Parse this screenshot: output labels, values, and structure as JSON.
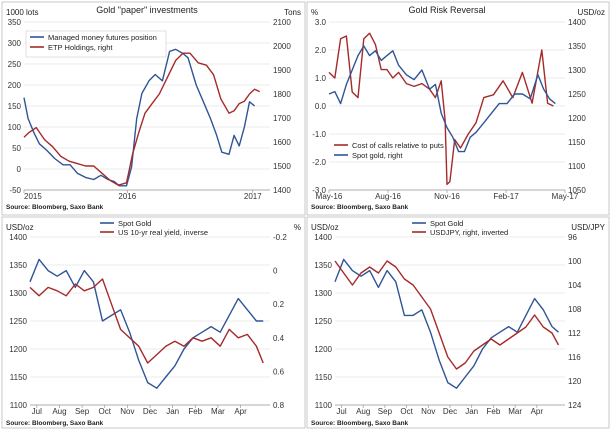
{
  "colors": {
    "blue": "#2f5597",
    "red": "#a52a2a",
    "grid": "#d8d8d8"
  },
  "chart_data": [
    {
      "type": "line",
      "title": "Gold \"paper\" investments",
      "ylabel_left": "1000 lots",
      "ylabel_right": "Tons",
      "source": "Source: Bloomberg, Saxo Bank",
      "x_ticks": [
        "2015",
        "2016",
        "2017"
      ],
      "xlim": [
        2015.0,
        2017.4
      ],
      "ylim_left": [
        -50,
        350
      ],
      "ylim_right": [
        1400,
        2100
      ],
      "yticks_left": [
        -50,
        0,
        50,
        100,
        150,
        200,
        250,
        300,
        350
      ],
      "yticks_right": [
        1400,
        1500,
        1600,
        1700,
        1800,
        1900,
        2000,
        2100
      ],
      "legend": "top-left",
      "series": [
        {
          "name": "Managed money futures position",
          "axis": "left",
          "color": "#2f5597",
          "x": [
            2015.0,
            2015.04,
            2015.1,
            2015.15,
            2015.22,
            2015.3,
            2015.38,
            2015.45,
            2015.52,
            2015.6,
            2015.68,
            2015.75,
            2015.82,
            2015.88,
            2015.93,
            2016.0,
            2016.05,
            2016.1,
            2016.15,
            2016.22,
            2016.28,
            2016.35,
            2016.42,
            2016.48,
            2016.55,
            2016.6,
            2016.68,
            2016.75,
            2016.82,
            2016.88,
            2016.93,
            2017.0,
            2017.05,
            2017.1,
            2017.15,
            2017.2,
            2017.25
          ],
          "values": [
            170,
            120,
            85,
            60,
            45,
            25,
            10,
            10,
            -10,
            -20,
            -25,
            -15,
            -25,
            -30,
            -40,
            -40,
            5,
            120,
            180,
            210,
            225,
            210,
            280,
            285,
            275,
            265,
            200,
            160,
            120,
            80,
            40,
            35,
            80,
            55,
            100,
            160,
            150
          ]
        },
        {
          "name": "ETP Holdings, right",
          "axis": "right",
          "color": "#a52a2a",
          "x": [
            2015.0,
            2015.05,
            2015.12,
            2015.2,
            2015.28,
            2015.36,
            2015.44,
            2015.52,
            2015.6,
            2015.68,
            2015.76,
            2015.84,
            2015.92,
            2016.0,
            2016.06,
            2016.12,
            2016.18,
            2016.25,
            2016.32,
            2016.4,
            2016.48,
            2016.55,
            2016.62,
            2016.7,
            2016.78,
            2016.85,
            2016.92,
            2017.0,
            2017.05,
            2017.1,
            2017.15,
            2017.2,
            2017.25,
            2017.3
          ],
          "values": [
            1620,
            1640,
            1660,
            1610,
            1580,
            1540,
            1520,
            1510,
            1500,
            1500,
            1470,
            1440,
            1420,
            1430,
            1550,
            1640,
            1720,
            1760,
            1800,
            1870,
            1940,
            1970,
            1970,
            1930,
            1920,
            1880,
            1780,
            1720,
            1730,
            1760,
            1770,
            1800,
            1820,
            1810
          ]
        }
      ]
    },
    {
      "type": "line",
      "title": "Gold Risk Reversal",
      "ylabel_left": "%",
      "ylabel_right": "USD/oz",
      "source": "Source: Bloomberg, Saxo Bank",
      "x_ticks": [
        "May-16",
        "Aug-16",
        "Nov-16",
        "Feb-17",
        "May-17"
      ],
      "xlim": [
        0,
        12.2
      ],
      "ylim_left": [
        -3.0,
        3.0
      ],
      "ylim_right": [
        1050,
        1400
      ],
      "yticks_left": [
        -3.0,
        -2.0,
        -1.0,
        0.0,
        1.0,
        2.0,
        3.0
      ],
      "yticks_right": [
        1050,
        1100,
        1150,
        1200,
        1250,
        1300,
        1350,
        1400
      ],
      "legend": "bottom-left",
      "series": [
        {
          "name": "Cost of calls relative to puts",
          "axis": "left",
          "color": "#a52a2a",
          "x": [
            0,
            0.3,
            0.6,
            0.9,
            1.2,
            1.5,
            1.8,
            2.1,
            2.4,
            2.7,
            3.0,
            3.3,
            3.6,
            4.0,
            4.4,
            4.8,
            5.2,
            5.5,
            5.8,
            6.0,
            6.1,
            6.25,
            6.5,
            6.8,
            7.2,
            7.6,
            8.0,
            8.5,
            9.0,
            9.5,
            10.0,
            10.5,
            11.0,
            11.3,
            11.6
          ],
          "values": [
            1.2,
            1.0,
            2.4,
            2.5,
            0.5,
            0.3,
            2.4,
            2.6,
            2.2,
            1.3,
            1.3,
            1.0,
            1.2,
            0.8,
            0.7,
            0.8,
            0.6,
            0.3,
            0.9,
            -0.5,
            -2.8,
            -2.7,
            -1.2,
            -1.5,
            -1.0,
            -0.6,
            0.3,
            0.4,
            0.9,
            0.3,
            1.2,
            0.1,
            2.0,
            0.1,
            0.0
          ]
        },
        {
          "name": "Spot gold, right",
          "axis": "right",
          "color": "#2f5597",
          "x": [
            0,
            0.3,
            0.6,
            0.9,
            1.2,
            1.5,
            1.8,
            2.1,
            2.4,
            2.7,
            3.0,
            3.3,
            3.6,
            4.0,
            4.4,
            4.8,
            5.2,
            5.5,
            5.8,
            6.1,
            6.4,
            6.7,
            7.0,
            7.3,
            7.6,
            8.0,
            8.4,
            8.8,
            9.2,
            9.6,
            10.0,
            10.4,
            10.8,
            11.1,
            11.4,
            11.7
          ],
          "values": [
            1250,
            1255,
            1230,
            1270,
            1300,
            1330,
            1350,
            1330,
            1340,
            1320,
            1330,
            1340,
            1310,
            1290,
            1280,
            1300,
            1260,
            1270,
            1210,
            1180,
            1160,
            1130,
            1130,
            1160,
            1170,
            1190,
            1210,
            1230,
            1230,
            1250,
            1250,
            1240,
            1290,
            1260,
            1240,
            1230
          ]
        }
      ]
    },
    {
      "type": "line",
      "ylabel_left": "USD/oz",
      "ylabel_right": "%",
      "source": "Source: Bloomberg, Saxo Bank",
      "x_ticks": [
        "Jul",
        "Aug",
        "Sep",
        "Oct",
        "Nov",
        "Dec",
        "Jan",
        "Feb",
        "Mar",
        "Apr"
      ],
      "xlim": [
        0,
        10.6
      ],
      "ylim_left": [
        1100,
        1400
      ],
      "ylim_right": [
        0.8,
        -0.2
      ],
      "yticks_left": [
        1100,
        1150,
        1200,
        1250,
        1300,
        1350,
        1400
      ],
      "yticks_right": [
        -0.2,
        0.0,
        0.2,
        0.4,
        0.6,
        0.8
      ],
      "yticks_right_labels": [
        "-0.2",
        "0",
        "0.2",
        "0.4",
        "0.6",
        "0.8"
      ],
      "legend": "top-center",
      "series": [
        {
          "name": "Spot Gold",
          "axis": "left",
          "color": "#2f5597",
          "x": [
            0,
            0.4,
            0.8,
            1.2,
            1.6,
            2.0,
            2.4,
            2.8,
            3.2,
            3.6,
            4.0,
            4.4,
            4.8,
            5.2,
            5.6,
            6.0,
            6.4,
            6.8,
            7.2,
            7.6,
            8.0,
            8.4,
            8.8,
            9.2,
            9.6,
            10.0,
            10.3
          ],
          "values": [
            1320,
            1360,
            1340,
            1330,
            1340,
            1310,
            1340,
            1320,
            1250,
            1260,
            1270,
            1230,
            1180,
            1140,
            1130,
            1150,
            1170,
            1200,
            1220,
            1230,
            1240,
            1230,
            1260,
            1290,
            1270,
            1250,
            1250
          ]
        },
        {
          "name": "US 10-yr real yield, inverse",
          "axis": "right",
          "color": "#a52a2a",
          "x": [
            0,
            0.4,
            0.8,
            1.2,
            1.6,
            2.0,
            2.4,
            2.8,
            3.2,
            3.6,
            4.0,
            4.4,
            4.8,
            5.2,
            5.6,
            6.0,
            6.4,
            6.8,
            7.2,
            7.6,
            8.0,
            8.4,
            8.8,
            9.2,
            9.6,
            10.0,
            10.3
          ],
          "values": [
            0.1,
            0.15,
            0.1,
            0.12,
            0.15,
            0.08,
            0.12,
            0.1,
            0.05,
            0.2,
            0.35,
            0.4,
            0.45,
            0.55,
            0.5,
            0.45,
            0.42,
            0.45,
            0.4,
            0.42,
            0.4,
            0.45,
            0.35,
            0.4,
            0.38,
            0.45,
            0.55
          ]
        }
      ]
    },
    {
      "type": "line",
      "ylabel_left": "USD/oz",
      "ylabel_right": "USD/JPY",
      "source": "Source: Bloomberg, Saxo Bank",
      "x_ticks": [
        "Jul",
        "Aug",
        "Sep",
        "Oct",
        "Nov",
        "Dec",
        "Jan",
        "Feb",
        "Mar",
        "Apr"
      ],
      "xlim": [
        0,
        10.6
      ],
      "ylim_left": [
        1100,
        1400
      ],
      "ylim_right": [
        124,
        96
      ],
      "yticks_left": [
        1100,
        1150,
        1200,
        1250,
        1300,
        1350,
        1400
      ],
      "yticks_right": [
        96,
        100,
        104,
        108,
        112,
        116,
        120,
        124
      ],
      "legend": "top-center",
      "series": [
        {
          "name": "Spot Gold",
          "axis": "left",
          "color": "#2f5597",
          "x": [
            0,
            0.4,
            0.8,
            1.2,
            1.6,
            2.0,
            2.4,
            2.8,
            3.2,
            3.6,
            4.0,
            4.4,
            4.8,
            5.2,
            5.6,
            6.0,
            6.4,
            6.8,
            7.2,
            7.6,
            8.0,
            8.4,
            8.8,
            9.2,
            9.6,
            10.0,
            10.3
          ],
          "values": [
            1320,
            1360,
            1340,
            1330,
            1340,
            1310,
            1340,
            1320,
            1260,
            1260,
            1270,
            1230,
            1180,
            1140,
            1130,
            1150,
            1170,
            1200,
            1220,
            1230,
            1240,
            1230,
            1260,
            1290,
            1270,
            1240,
            1230
          ]
        },
        {
          "name": "USDJPY, right, inverted",
          "axis": "right",
          "color": "#a52a2a",
          "x": [
            0,
            0.4,
            0.8,
            1.2,
            1.6,
            2.0,
            2.4,
            2.8,
            3.2,
            3.6,
            4.0,
            4.4,
            4.8,
            5.2,
            5.6,
            6.0,
            6.4,
            6.8,
            7.2,
            7.6,
            8.0,
            8.4,
            8.8,
            9.2,
            9.6,
            10.0,
            10.3
          ],
          "values": [
            100,
            102,
            104,
            102,
            101,
            102,
            100,
            101,
            103,
            104,
            106,
            108,
            112,
            116,
            118,
            117,
            115,
            114,
            113,
            114,
            113,
            112,
            111,
            109,
            111,
            112,
            114
          ]
        }
      ]
    }
  ]
}
